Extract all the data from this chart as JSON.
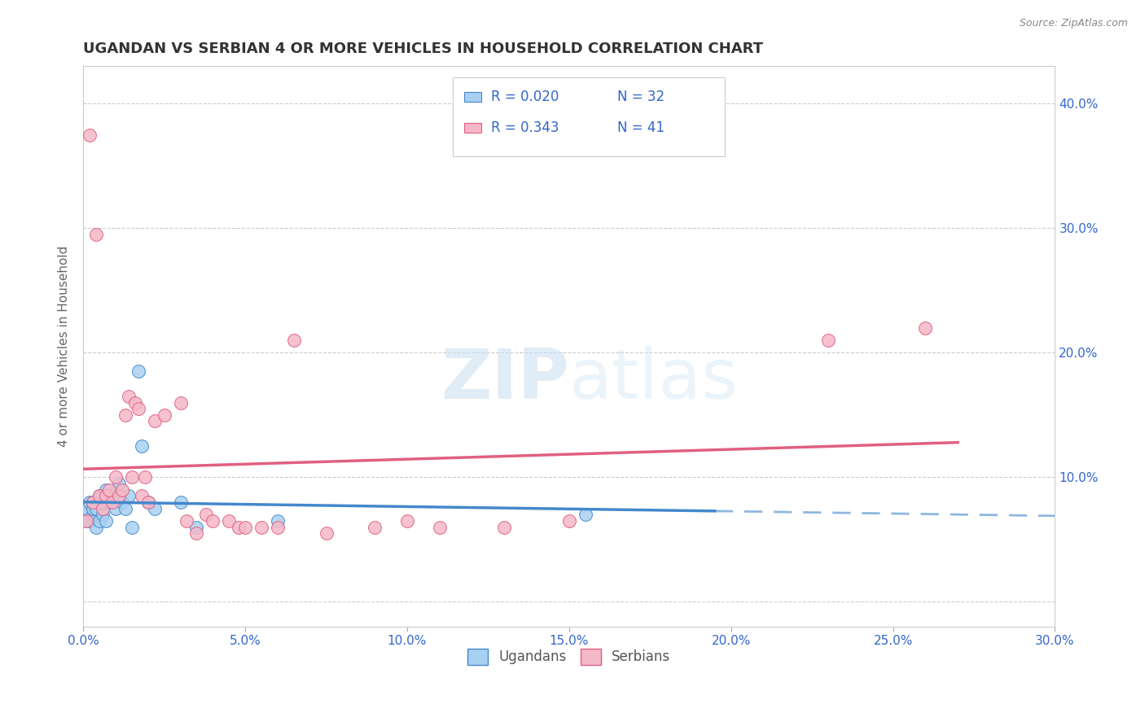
{
  "title": "UGANDAN VS SERBIAN 4 OR MORE VEHICLES IN HOUSEHOLD CORRELATION CHART",
  "source": "Source: ZipAtlas.com",
  "ylabel": "4 or more Vehicles in Household",
  "ytick_vals": [
    0.0,
    0.1,
    0.2,
    0.3,
    0.4
  ],
  "xlim": [
    0.0,
    0.3
  ],
  "ylim": [
    -0.02,
    0.43
  ],
  "legend_R1": "R = 0.020",
  "legend_N1": "N = 32",
  "legend_R2": "R = 0.343",
  "legend_N2": "N = 41",
  "legend_labels": [
    "Ugandans",
    "Serbians"
  ],
  "ugandan_color": "#a8d0f0",
  "serbian_color": "#f5b8c8",
  "ugandan_line_color": "#4488cc",
  "serbian_line_color": "#e06080",
  "legend_text_color": "#3366cc",
  "title_color": "#333333",
  "watermark_zip": "ZIP",
  "watermark_atlas": "atlas",
  "ugandan_x": [
    0.001,
    0.001,
    0.001,
    0.002,
    0.002,
    0.003,
    0.003,
    0.003,
    0.004,
    0.004,
    0.005,
    0.005,
    0.006,
    0.006,
    0.007,
    0.007,
    0.008,
    0.009,
    0.01,
    0.011,
    0.012,
    0.013,
    0.014,
    0.015,
    0.017,
    0.018,
    0.02,
    0.022,
    0.03,
    0.035,
    0.06,
    0.155
  ],
  "ugandan_y": [
    0.065,
    0.07,
    0.075,
    0.065,
    0.08,
    0.07,
    0.075,
    0.08,
    0.06,
    0.075,
    0.065,
    0.085,
    0.07,
    0.08,
    0.065,
    0.09,
    0.08,
    0.085,
    0.075,
    0.095,
    0.08,
    0.075,
    0.085,
    0.06,
    0.185,
    0.125,
    0.08,
    0.075,
    0.08,
    0.06,
    0.065,
    0.07
  ],
  "serbian_x": [
    0.001,
    0.002,
    0.003,
    0.004,
    0.005,
    0.006,
    0.007,
    0.008,
    0.009,
    0.01,
    0.011,
    0.012,
    0.013,
    0.014,
    0.015,
    0.016,
    0.017,
    0.018,
    0.019,
    0.02,
    0.022,
    0.025,
    0.03,
    0.032,
    0.035,
    0.038,
    0.04,
    0.045,
    0.048,
    0.05,
    0.055,
    0.06,
    0.065,
    0.075,
    0.09,
    0.1,
    0.11,
    0.13,
    0.15,
    0.23,
    0.26
  ],
  "serbian_y": [
    0.065,
    0.375,
    0.08,
    0.295,
    0.085,
    0.075,
    0.085,
    0.09,
    0.08,
    0.1,
    0.085,
    0.09,
    0.15,
    0.165,
    0.1,
    0.16,
    0.155,
    0.085,
    0.1,
    0.08,
    0.145,
    0.15,
    0.16,
    0.065,
    0.055,
    0.07,
    0.065,
    0.065,
    0.06,
    0.06,
    0.06,
    0.06,
    0.21,
    0.055,
    0.06,
    0.065,
    0.06,
    0.06,
    0.065,
    0.21,
    0.22
  ]
}
